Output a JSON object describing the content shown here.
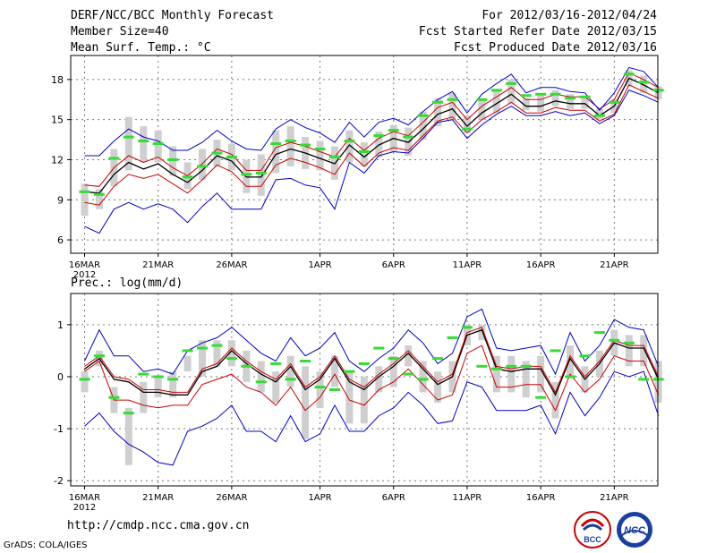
{
  "header": {
    "title": "DERF/NCC/BCC Monthly Forecast",
    "member_size": "Member Size=40",
    "variable": "Mean Surf. Temp.: °C",
    "period": "For 2012/03/16-2012/04/24",
    "start_date": "Fcst Started Refer Date 2012/03/15",
    "produced_date": "Fcst Produced Date 2012/03/16"
  },
  "panel2_label": "Prec.: log(mm/d)",
  "footer": {
    "url": "http://cmdp.ncc.cma.gov.cn",
    "credit": "GrADS: COLA/IGES",
    "logo1": "BCC",
    "logo2": "NCC"
  },
  "colors": {
    "mean": "#000000",
    "spread": "#cc0000",
    "envelope": "#0000cc",
    "member_median": "#33dd33",
    "box": "#cfcfcf"
  },
  "chart_data": [
    {
      "type": "line",
      "title": "Mean Surf. Temp.: °C",
      "x_tick_labels": [
        "16MAR",
        "21MAR",
        "26MAR",
        "1APR",
        "6APR",
        "11APR",
        "16APR",
        "21APR"
      ],
      "x_tick_days": [
        0,
        5,
        10,
        16,
        21,
        26,
        31,
        36
      ],
      "x_year_label": "2012",
      "ylim": [
        5,
        19.8
      ],
      "yticks": [
        6,
        9,
        12,
        15,
        18
      ],
      "days": [
        0,
        1,
        2,
        3,
        4,
        5,
        6,
        7,
        8,
        9,
        10,
        11,
        12,
        13,
        14,
        15,
        16,
        17,
        18,
        19,
        20,
        21,
        22,
        23,
        24,
        25,
        26,
        27,
        28,
        29,
        30,
        31,
        32,
        33,
        34,
        35,
        36,
        37,
        38,
        39
      ],
      "series": [
        {
          "name": "ensemble mean",
          "values": [
            9.6,
            9.5,
            10.9,
            11.8,
            11.3,
            11.7,
            10.9,
            10.3,
            11.2,
            12.3,
            11.9,
            10.7,
            10.7,
            12.4,
            12.8,
            12.5,
            12.1,
            11.7,
            13.1,
            12.2,
            13.1,
            13.6,
            13.3,
            14.3,
            15.4,
            15.8,
            14.5,
            15.5,
            16.2,
            16.9,
            16.0,
            16.0,
            16.4,
            16.2,
            16.2,
            15.3,
            16.0,
            18.1,
            17.6,
            17.0
          ]
        },
        {
          "name": "mean + 1 sd",
          "values": [
            10.1,
            10.0,
            11.4,
            12.3,
            11.8,
            12.2,
            11.4,
            10.8,
            11.7,
            12.8,
            12.4,
            11.2,
            11.2,
            12.9,
            13.3,
            13.0,
            12.6,
            12.2,
            13.6,
            12.7,
            13.6,
            14.1,
            13.8,
            14.8,
            15.9,
            16.3,
            15.0,
            16.0,
            16.7,
            17.4,
            16.5,
            16.5,
            16.9,
            16.7,
            16.7,
            15.8,
            16.5,
            18.5,
            18.0,
            17.4
          ]
        },
        {
          "name": "mean - 1 sd",
          "values": [
            8.8,
            8.6,
            10.0,
            10.9,
            10.6,
            10.9,
            10.2,
            9.5,
            10.5,
            11.6,
            11.1,
            10.0,
            10.0,
            11.6,
            12.1,
            11.8,
            11.4,
            10.9,
            12.5,
            11.5,
            12.5,
            12.9,
            12.7,
            13.8,
            14.9,
            15.2,
            14.0,
            15.0,
            15.6,
            16.3,
            15.5,
            15.5,
            15.9,
            15.7,
            15.7,
            14.9,
            15.4,
            17.6,
            17.1,
            16.6
          ]
        },
        {
          "name": "ensemble max",
          "values": [
            12.3,
            12.3,
            13.4,
            14.3,
            13.7,
            13.4,
            12.7,
            12.7,
            13.3,
            14.2,
            13.4,
            12.8,
            12.7,
            14.3,
            15.0,
            14.4,
            14.0,
            13.3,
            14.8,
            13.7,
            14.8,
            15.1,
            14.6,
            15.6,
            16.5,
            17.1,
            15.5,
            16.9,
            17.7,
            18.4,
            17.0,
            17.4,
            17.4,
            17.1,
            17.0,
            15.7,
            17.0,
            18.9,
            18.6,
            17.4
          ]
        },
        {
          "name": "ensemble min",
          "values": [
            7.0,
            6.5,
            8.3,
            8.8,
            8.3,
            8.7,
            8.3,
            7.3,
            8.5,
            9.5,
            8.3,
            8.3,
            8.3,
            10.5,
            10.6,
            10.1,
            9.9,
            8.3,
            11.8,
            11.0,
            12.3,
            12.6,
            12.5,
            13.6,
            14.8,
            15.0,
            13.6,
            14.6,
            15.4,
            16.0,
            15.3,
            15.3,
            15.6,
            15.3,
            15.5,
            14.7,
            15.3,
            17.2,
            16.8,
            16.3
          ]
        },
        {
          "name": "member median",
          "values": [
            9.6,
            9.4,
            12.1,
            13.7,
            13.4,
            13.2,
            12.0,
            10.7,
            11.5,
            12.5,
            12.2,
            10.9,
            11.0,
            13.2,
            13.4,
            13.1,
            12.8,
            12.2,
            13.4,
            12.6,
            13.8,
            14.2,
            13.7,
            15.3,
            16.3,
            16.5,
            14.3,
            16.5,
            17.2,
            17.7,
            16.8,
            16.9,
            16.9,
            16.6,
            16.7,
            15.3,
            16.3,
            18.4,
            17.8,
            17.2
          ]
        }
      ],
      "boxes": [
        [
          7.8,
          10.2
        ],
        [
          8.3,
          9.8
        ],
        [
          10.0,
          12.8
        ],
        [
          11.2,
          15.2
        ],
        [
          11.8,
          14.5
        ],
        [
          11.8,
          14.2
        ],
        [
          10.8,
          13.0
        ],
        [
          9.8,
          11.8
        ],
        [
          10.5,
          12.8
        ],
        [
          11.5,
          13.5
        ],
        [
          11.2,
          13.2
        ],
        [
          9.5,
          12.0
        ],
        [
          9.3,
          12.4
        ],
        [
          11.0,
          14.2
        ],
        [
          11.5,
          14.5
        ],
        [
          11.3,
          13.7
        ],
        [
          11.2,
          13.4
        ],
        [
          10.5,
          13.0
        ],
        [
          11.8,
          14.2
        ],
        [
          11.5,
          13.3
        ],
        [
          12.2,
          14.1
        ],
        [
          12.6,
          14.6
        ],
        [
          12.3,
          14.4
        ],
        [
          13.5,
          15.6
        ],
        [
          14.5,
          16.6
        ],
        [
          15.0,
          17.0
        ],
        [
          14.0,
          15.3
        ],
        [
          15.0,
          16.5
        ],
        [
          15.5,
          17.2
        ],
        [
          16.2,
          18.0
        ],
        [
          15.7,
          16.6
        ],
        [
          15.6,
          16.8
        ],
        [
          16.0,
          17.2
        ],
        [
          15.8,
          16.9
        ],
        [
          15.8,
          16.8
        ],
        [
          15.0,
          15.8
        ],
        [
          15.5,
          16.5
        ],
        [
          17.5,
          18.7
        ],
        [
          17.0,
          18.3
        ],
        [
          16.5,
          17.5
        ]
      ]
    },
    {
      "type": "line",
      "title": "Prec.: log(mm/d)",
      "x_tick_labels": [
        "16MAR",
        "21MAR",
        "26MAR",
        "1APR",
        "6APR",
        "11APR",
        "16APR",
        "21APR"
      ],
      "x_tick_days": [
        0,
        5,
        10,
        16,
        21,
        26,
        31,
        36
      ],
      "x_year_label": "2012",
      "ylim": [
        -2.1,
        1.6
      ],
      "yticks": [
        -2,
        -1,
        0,
        1
      ],
      "days": [
        0,
        1,
        2,
        3,
        4,
        5,
        6,
        7,
        8,
        9,
        10,
        11,
        12,
        13,
        14,
        15,
        16,
        17,
        18,
        19,
        20,
        21,
        22,
        23,
        24,
        25,
        26,
        27,
        28,
        29,
        30,
        31,
        32,
        33,
        34,
        35,
        36,
        37,
        38,
        39
      ],
      "series": [
        {
          "name": "ensemble mean",
          "values": [
            0.15,
            0.35,
            -0.05,
            -0.1,
            -0.3,
            -0.3,
            -0.35,
            -0.35,
            0.1,
            0.2,
            0.5,
            0.25,
            0.05,
            -0.1,
            0.2,
            -0.25,
            -0.05,
            0.35,
            -0.1,
            -0.25,
            0.0,
            0.2,
            0.45,
            0.15,
            -0.15,
            0.0,
            0.8,
            0.9,
            0.15,
            0.1,
            0.15,
            0.15,
            -0.35,
            0.35,
            -0.05,
            0.25,
            0.65,
            0.55,
            0.55,
            -0.05
          ]
        },
        {
          "name": "mean + 1 sd",
          "values": [
            0.2,
            0.4,
            0.0,
            -0.05,
            -0.25,
            -0.25,
            -0.3,
            -0.3,
            0.15,
            0.25,
            0.55,
            0.3,
            0.1,
            -0.05,
            0.25,
            -0.2,
            0.0,
            0.4,
            -0.05,
            -0.2,
            0.05,
            0.25,
            0.5,
            0.2,
            -0.1,
            0.05,
            0.85,
            0.95,
            0.2,
            0.15,
            0.2,
            0.2,
            -0.3,
            0.4,
            0.0,
            0.3,
            0.7,
            0.6,
            0.6,
            0.0
          ]
        },
        {
          "name": "mean - 1 sd",
          "values": [
            0.1,
            0.3,
            -0.45,
            -0.45,
            -0.55,
            -0.6,
            -0.55,
            -0.55,
            -0.15,
            -0.05,
            0.05,
            -0.2,
            -0.3,
            -0.55,
            -0.2,
            -0.65,
            -0.4,
            0.05,
            -0.45,
            -0.55,
            -0.25,
            -0.1,
            0.15,
            -0.15,
            -0.45,
            -0.35,
            0.45,
            0.6,
            -0.2,
            -0.2,
            -0.15,
            -0.15,
            -0.65,
            0.05,
            -0.3,
            -0.05,
            0.4,
            0.3,
            0.3,
            -0.35
          ]
        },
        {
          "name": "ensemble max",
          "values": [
            0.3,
            0.9,
            0.4,
            0.4,
            0.1,
            0.15,
            0.05,
            0.5,
            0.65,
            0.75,
            0.95,
            0.7,
            0.45,
            0.3,
            0.75,
            0.4,
            0.55,
            0.85,
            0.3,
            0.1,
            0.35,
            0.55,
            0.9,
            0.65,
            0.25,
            0.45,
            1.15,
            1.3,
            0.55,
            0.5,
            0.55,
            0.6,
            0.05,
            0.85,
            0.3,
            0.6,
            1.1,
            0.95,
            0.9,
            0.2
          ]
        },
        {
          "name": "ensemble min",
          "values": [
            -0.95,
            -0.7,
            -1.05,
            -1.3,
            -1.45,
            -1.65,
            -1.7,
            -1.05,
            -0.95,
            -0.8,
            -0.55,
            -1.05,
            -1.05,
            -1.25,
            -0.75,
            -1.25,
            -1.1,
            -0.55,
            -1.05,
            -1.05,
            -0.75,
            -0.6,
            -0.3,
            -0.55,
            -0.9,
            -0.85,
            -0.1,
            -0.2,
            -0.65,
            -0.65,
            -0.65,
            -0.55,
            -1.1,
            -0.3,
            -0.75,
            -0.4,
            0.1,
            0.0,
            0.1,
            -0.75
          ]
        },
        {
          "name": "member median",
          "values": [
            -0.05,
            0.4,
            -0.4,
            -0.7,
            0.05,
            0.0,
            -0.05,
            0.5,
            0.55,
            0.6,
            0.35,
            0.2,
            -0.1,
            0.25,
            -0.05,
            0.3,
            -0.2,
            -0.25,
            0.1,
            0.25,
            0.55,
            0.35,
            0.05,
            -0.05,
            0.35,
            0.75,
            0.95,
            0.2,
            0.15,
            0.2,
            0.2,
            -0.4,
            0.5,
            0.0,
            0.4,
            0.85,
            0.7,
            0.65,
            -0.05,
            -0.05
          ]
        }
      ],
      "boxes": [
        [
          -0.3,
          0.1
        ],
        [
          0.2,
          0.5
        ],
        [
          -0.7,
          -0.2
        ],
        [
          -1.7,
          -0.6
        ],
        [
          -0.7,
          -0.1
        ],
        [
          -0.4,
          0.0
        ],
        [
          -0.4,
          0.1
        ],
        [
          0.1,
          0.4
        ],
        [
          0.0,
          0.7
        ],
        [
          0.2,
          0.7
        ],
        [
          0.2,
          0.7
        ],
        [
          -0.1,
          0.5
        ],
        [
          -0.3,
          0.3
        ],
        [
          -0.5,
          0.1
        ],
        [
          -0.2,
          0.4
        ],
        [
          -1.2,
          0.2
        ],
        [
          -0.6,
          0.1
        ],
        [
          -0.2,
          0.4
        ],
        [
          -0.9,
          0.1
        ],
        [
          -0.9,
          0.0
        ],
        [
          -0.3,
          0.2
        ],
        [
          -0.2,
          0.4
        ],
        [
          0.2,
          0.6
        ],
        [
          -0.3,
          0.3
        ],
        [
          -0.5,
          0.1
        ],
        [
          -0.3,
          0.3
        ],
        [
          0.6,
          1.0
        ],
        [
          0.7,
          1.0
        ],
        [
          -0.3,
          0.4
        ],
        [
          -0.3,
          0.4
        ],
        [
          -0.4,
          0.3
        ],
        [
          -0.3,
          0.4
        ],
        [
          -0.8,
          -0.1
        ],
        [
          0.0,
          0.6
        ],
        [
          -0.3,
          0.2
        ],
        [
          0.0,
          0.5
        ],
        [
          0.4,
          0.9
        ],
        [
          0.2,
          0.8
        ],
        [
          0.2,
          0.8
        ],
        [
          -0.5,
          0.3
        ]
      ]
    }
  ]
}
